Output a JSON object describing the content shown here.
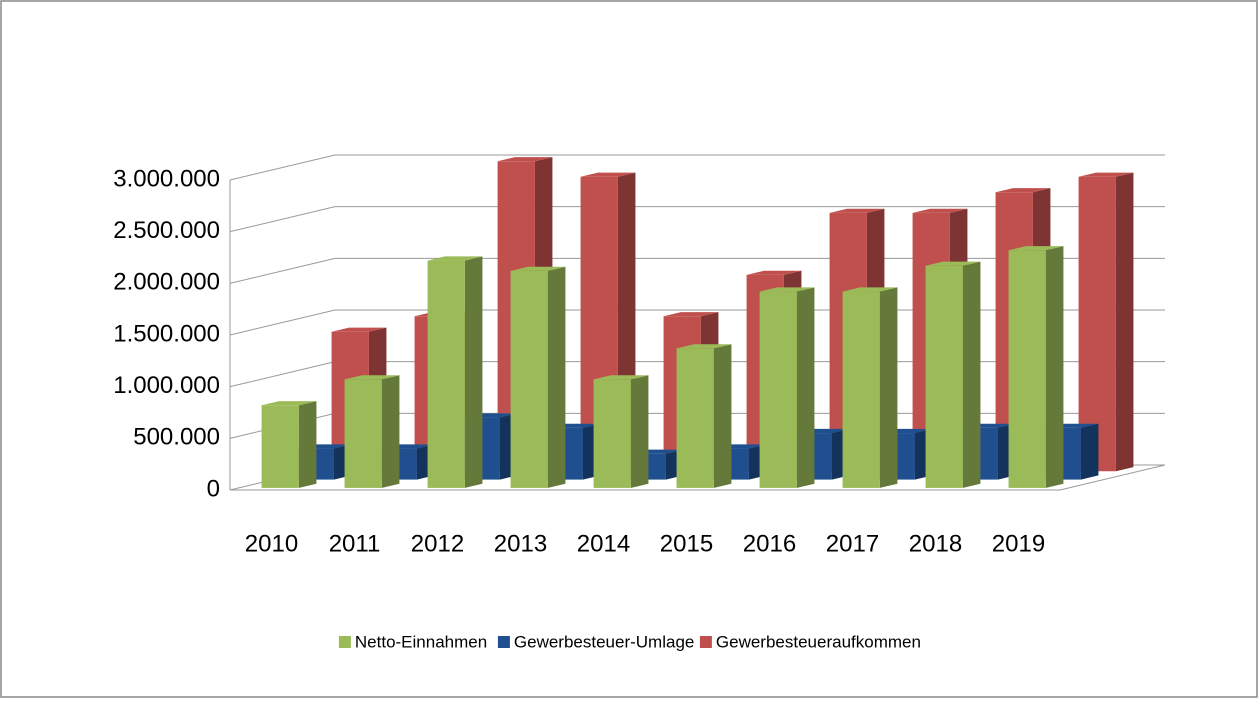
{
  "chart_data": {
    "type": "bar3d",
    "categories": [
      "2010",
      "2011",
      "2012",
      "2013",
      "2014",
      "2015",
      "2016",
      "2017",
      "2018",
      "2019"
    ],
    "series": [
      {
        "name": "Netto-Einnahmen",
        "color": "#9bbb59",
        "values": [
          800000,
          1050000,
          2200000,
          2100000,
          1050000,
          1350000,
          1900000,
          1900000,
          2150000,
          2300000
        ]
      },
      {
        "name": "Gewerbesteuer-Umlage",
        "color": "#1f4f8e",
        "values": [
          300000,
          300000,
          600000,
          500000,
          250000,
          300000,
          450000,
          450000,
          500000,
          500000
        ]
      },
      {
        "name": "Gewerbesteueraufkommen",
        "color": "#c0504d",
        "values": [
          1350000,
          1500000,
          3000000,
          2850000,
          1500000,
          1900000,
          2500000,
          2500000,
          2700000,
          2850000
        ]
      }
    ],
    "ylim": [
      0,
      3000000
    ],
    "yticks": [
      0,
      {
        "value": 500000,
        "label": "500.000"
      },
      {
        "value": 1000000,
        "label": "1.000.000"
      },
      {
        "value": 1500000,
        "label": "1.500.000"
      },
      {
        "value": 2000000,
        "label": "2.000.000"
      },
      {
        "value": 2500000,
        "label": "2.500.000"
      },
      {
        "value": 3000000,
        "label": "3.000.000"
      }
    ],
    "grid": true,
    "legend": "bottom"
  }
}
